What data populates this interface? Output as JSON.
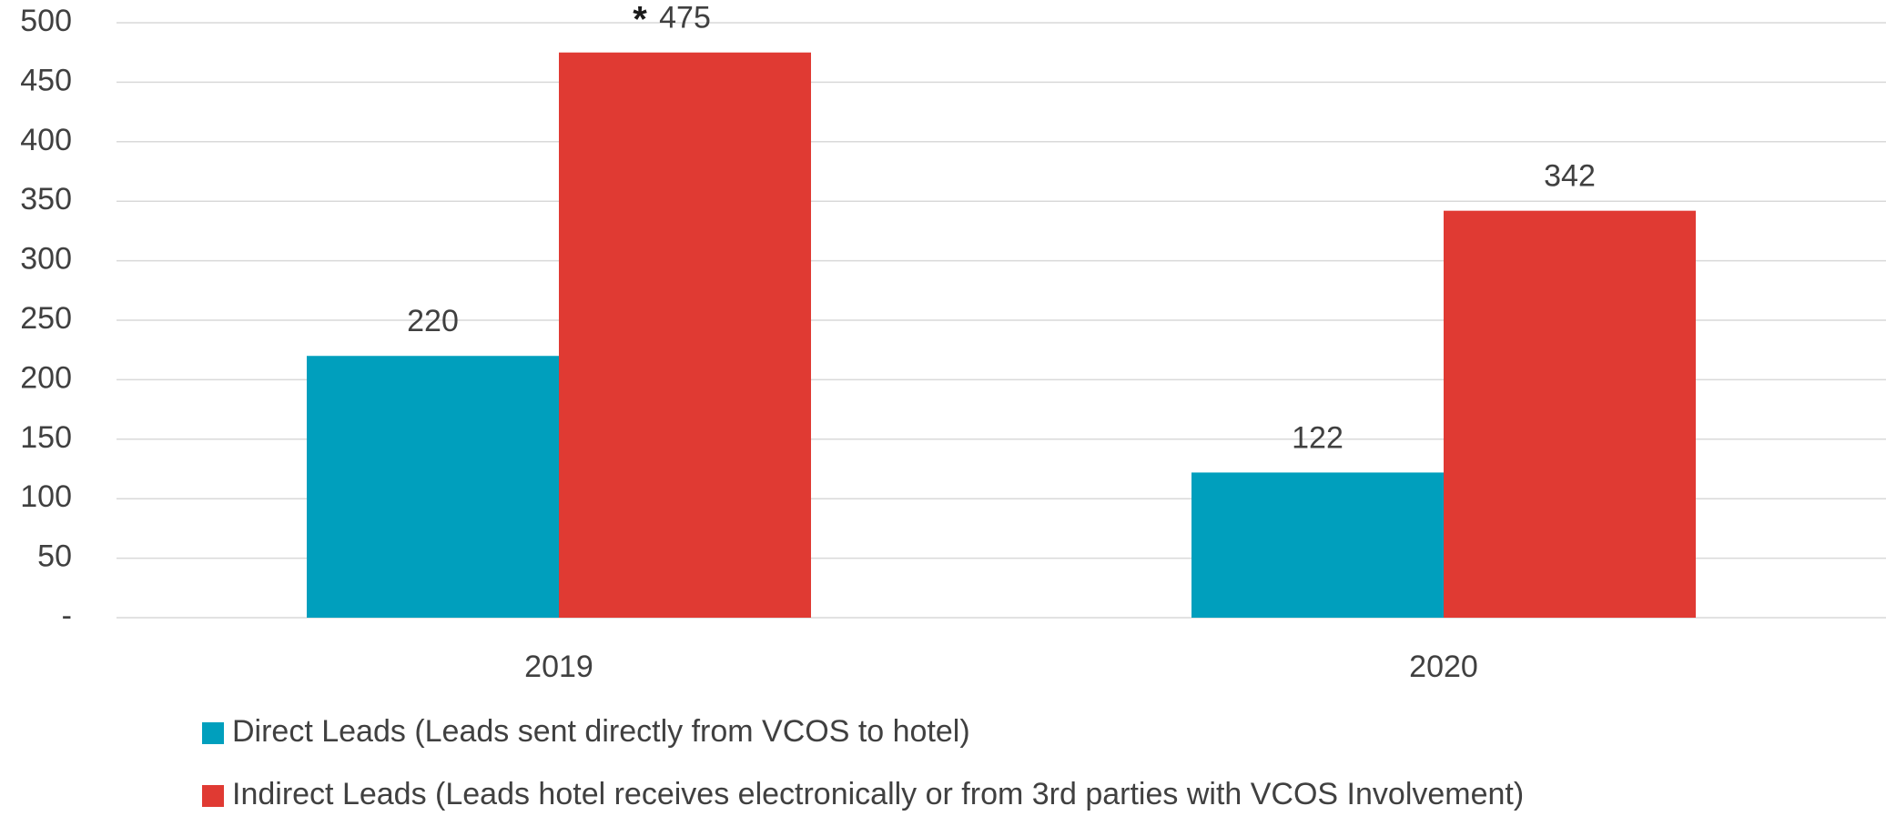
{
  "chart_data": {
    "type": "bar",
    "categories": [
      "2019",
      "2020"
    ],
    "series": [
      {
        "name": "Direct Leads (Leads sent directly from VCOS to hotel)",
        "color": "#009fbd",
        "values": [
          220,
          122
        ]
      },
      {
        "name": "Indirect Leads (Leads hotel receives electronically or from 3rd parties with VCOS Involvement)",
        "color": "#e03a33",
        "values": [
          475,
          342
        ]
      }
    ],
    "annotation": "*",
    "ylim": [
      0,
      500
    ],
    "yticks": [
      {
        "value": 0,
        "label": "-"
      },
      50,
      100,
      150,
      200,
      250,
      300,
      350,
      400,
      450,
      500
    ],
    "grid": true,
    "legend": "bottom"
  }
}
